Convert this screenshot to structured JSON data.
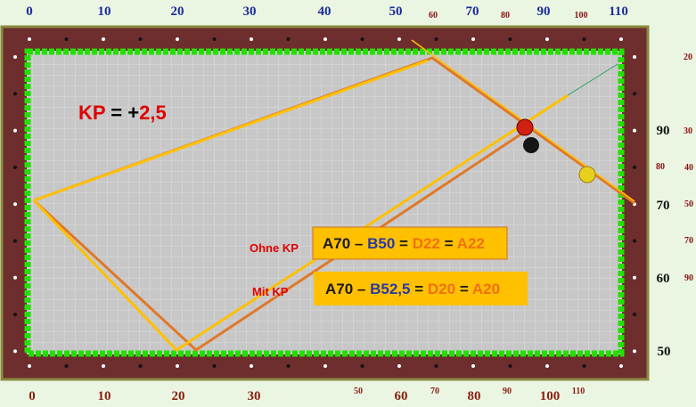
{
  "kp": {
    "label": "KP",
    "equals": "=",
    "sign": "+",
    "value": "2,5"
  },
  "top_labels": [
    "0",
    "10",
    "20",
    "30",
    "40",
    "50",
    "60",
    "70",
    "80",
    "90",
    "100",
    "110"
  ],
  "bottom_labels": [
    "0",
    "10",
    "20",
    "30",
    "50",
    "60",
    "70",
    "80",
    "90",
    "100",
    "110"
  ],
  "right_labels": [
    "20",
    "90",
    "30",
    "80",
    "40",
    "70",
    "50",
    "70",
    "60",
    "90",
    "50"
  ],
  "ohne_kp": {
    "label": "Ohne KP",
    "parts": [
      "A70",
      "–",
      "B50",
      "=",
      "D22",
      "=",
      "A22"
    ]
  },
  "mit_kp": {
    "label": "Mit KP",
    "parts": [
      "A70",
      "–",
      "B52,5",
      "=",
      "D20",
      "=",
      "A20"
    ]
  }
}
